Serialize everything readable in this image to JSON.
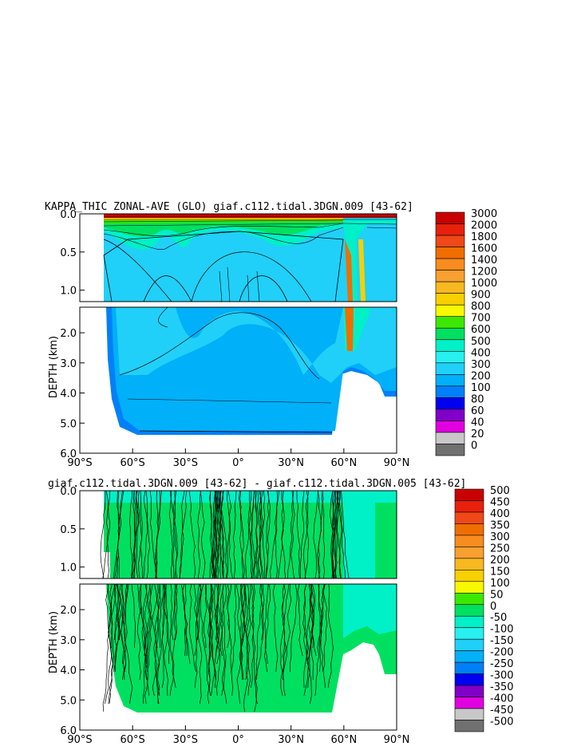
{
  "chart_data": [
    {
      "type": "heatmap",
      "title": "KAPPA_THIC ZONAL-AVE (GLO) giaf.c112.tidal.3DGN.009 [43-62]",
      "ylabel": "DEPTH (km)",
      "x_ticks": [
        "90°S",
        "60°S",
        "30°S",
        "0°",
        "30°N",
        "60°N",
        "90°N"
      ],
      "y_ticks_upper": [
        "0.0",
        "0.5",
        "1.0"
      ],
      "y_ticks_lower": [
        "2.0",
        "3.0",
        "4.0",
        "5.0",
        "6.0"
      ],
      "xlim": [
        -90,
        90
      ],
      "ylim": [
        6.0,
        0.0
      ],
      "colorbar_levels": [
        "3000",
        "2000",
        "1800",
        "1600",
        "1400",
        "1200",
        "1000",
        "900",
        "800",
        "700",
        "600",
        "500",
        "400",
        "300",
        "200",
        "100",
        "80",
        "60",
        "40",
        "20",
        "0"
      ],
      "colorbar_colors": [
        "#c80000",
        "#e8200c",
        "#f04818",
        "#f06e00",
        "#f88c20",
        "#f8a030",
        "#f8b820",
        "#f8d000",
        "#f8f800",
        "#3ce800",
        "#00e060",
        "#00f0c8",
        "#28f0f0",
        "#20d0f8",
        "#00b0f8",
        "#0080f8",
        "#0000f0",
        "#8000c8",
        "#e000e0",
        "#c8c8c8",
        "#707070"
      ]
    },
    {
      "type": "heatmap",
      "title": "giaf.c112.tidal.3DGN.009 [43-62] - giaf.c112.tidal.3DGN.005 [43-62]",
      "ylabel": "DEPTH (km)",
      "x_ticks": [
        "90°S",
        "60°S",
        "30°S",
        "0°",
        "30°N",
        "60°N",
        "90°N"
      ],
      "y_ticks_upper": [
        "0.0",
        "0.5",
        "1.0"
      ],
      "y_ticks_lower": [
        "2.0",
        "3.0",
        "4.0",
        "5.0",
        "6.0"
      ],
      "xlim": [
        -90,
        90
      ],
      "ylim": [
        6.0,
        0.0
      ],
      "colorbar_levels": [
        "500",
        "450",
        "400",
        "350",
        "300",
        "250",
        "200",
        "150",
        "100",
        "50",
        "0",
        "-50",
        "-100",
        "-150",
        "-200",
        "-250",
        "-300",
        "-350",
        "-400",
        "-450",
        "-500"
      ],
      "colorbar_colors": [
        "#c80000",
        "#e8200c",
        "#f04818",
        "#f06e00",
        "#f88c20",
        "#f8a030",
        "#f8b820",
        "#f8d000",
        "#f8f800",
        "#3ce800",
        "#00e060",
        "#00f0c8",
        "#28f0f0",
        "#20d0f8",
        "#00b0f8",
        "#0080f8",
        "#0000f0",
        "#8000c8",
        "#e000e0",
        "#c8c8c8",
        "#707070"
      ]
    }
  ]
}
